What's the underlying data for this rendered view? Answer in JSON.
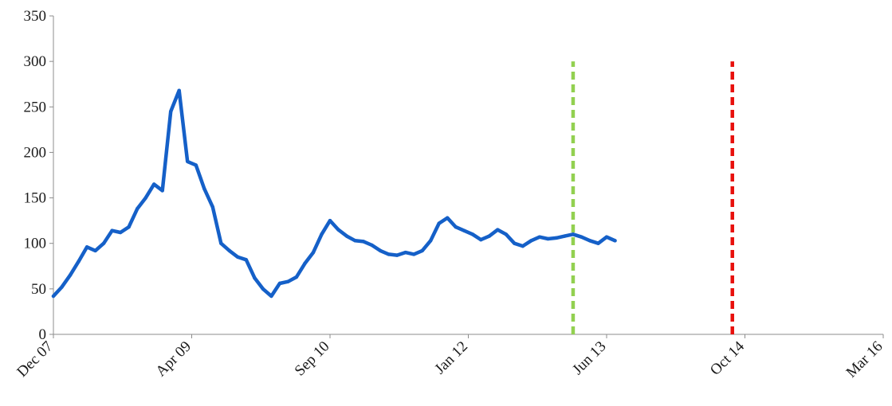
{
  "chart_data": {
    "type": "line",
    "title": "",
    "xlabel": "",
    "ylabel": "",
    "ylim": [
      0,
      350
    ],
    "yticks": [
      0,
      50,
      100,
      150,
      200,
      250,
      300,
      350
    ],
    "xlim": [
      "2007-12",
      "2016-03"
    ],
    "xticks": [
      "Dec 07",
      "Apr 09",
      "Sep 10",
      "Jan 12",
      "Jun 13",
      "Oct 14",
      "Mar 16"
    ],
    "grid": false,
    "legend": "none",
    "series": [
      {
        "color": "#1560C8",
        "x": [
          "2007-12",
          "2008-01",
          "2008-02",
          "2008-03",
          "2008-04",
          "2008-05",
          "2008-06",
          "2008-07",
          "2008-08",
          "2008-09",
          "2008-10",
          "2008-11",
          "2008-12",
          "2009-01",
          "2009-02",
          "2009-03",
          "2009-04",
          "2009-05",
          "2009-06",
          "2009-07",
          "2009-08",
          "2009-09",
          "2009-10",
          "2009-11",
          "2009-12",
          "2010-01",
          "2010-02",
          "2010-03",
          "2010-04",
          "2010-05",
          "2010-06",
          "2010-07",
          "2010-08",
          "2010-09",
          "2010-10",
          "2010-11",
          "2010-12",
          "2011-01",
          "2011-02",
          "2011-03",
          "2011-04",
          "2011-05",
          "2011-06",
          "2011-07",
          "2011-08",
          "2011-09",
          "2011-10",
          "2011-11",
          "2011-12",
          "2012-01",
          "2012-02",
          "2012-03",
          "2012-04",
          "2012-05",
          "2012-06",
          "2012-07",
          "2012-08",
          "2012-09",
          "2012-10",
          "2012-11",
          "2012-12",
          "2013-01",
          "2013-02",
          "2013-03",
          "2013-04",
          "2013-05",
          "2013-06",
          "2013-07"
        ],
        "values": [
          42,
          52,
          65,
          80,
          96,
          92,
          100,
          114,
          112,
          118,
          138,
          150,
          165,
          158,
          245,
          268,
          190,
          186,
          160,
          140,
          100,
          92,
          85,
          82,
          62,
          50,
          42,
          56,
          58,
          63,
          78,
          90,
          110,
          125,
          115,
          108,
          103,
          102,
          98,
          92,
          88,
          87,
          90,
          88,
          92,
          103,
          122,
          128,
          118,
          114,
          110,
          104,
          108,
          115,
          110,
          100,
          97,
          103,
          107,
          105,
          106,
          108,
          110,
          107,
          103,
          100,
          107,
          103
        ]
      }
    ],
    "annotations": [
      {
        "type": "vline",
        "x": "2013-02",
        "color": "#92D050",
        "style": "dashed",
        "y_top": 300
      },
      {
        "type": "vline",
        "x": "2014-09",
        "color": "#E8100C",
        "style": "dashed",
        "y_top": 300
      }
    ]
  }
}
